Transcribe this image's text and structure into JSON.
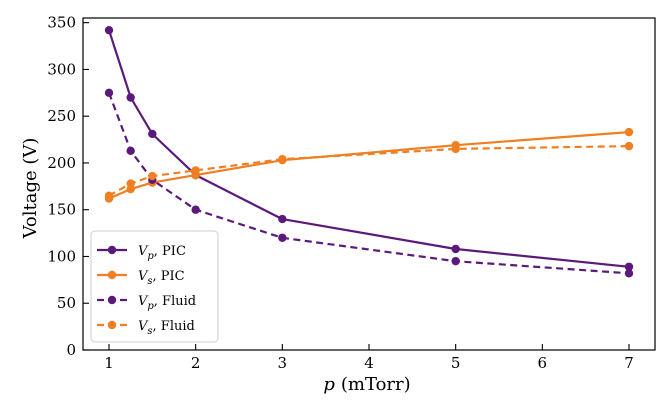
{
  "chart_data": {
    "type": "line",
    "title": "",
    "xlabel": {
      "var": "p",
      "unit": "(mTorr)"
    },
    "ylabel": "Voltage (V)",
    "xlim": [
      0.7,
      7.3
    ],
    "ylim": [
      0,
      355
    ],
    "xticks": [
      1,
      2,
      3,
      4,
      5,
      6,
      7
    ],
    "yticks": [
      0,
      50,
      100,
      150,
      200,
      250,
      300,
      350
    ],
    "grid": false,
    "legend_position": "lower-left",
    "series": [
      {
        "id": "vp-pic",
        "var": "V",
        "sub": "p",
        "method": "PIC",
        "color": "#5b1a7b",
        "dash": "solid",
        "x": [
          1,
          1.25,
          1.5,
          2,
          3,
          5,
          7
        ],
        "y": [
          342,
          270,
          231,
          187,
          140,
          108,
          89
        ]
      },
      {
        "id": "vs-pic",
        "var": "V",
        "sub": "s",
        "method": "PIC",
        "color": "#f07f21",
        "dash": "solid",
        "x": [
          1,
          1.25,
          1.5,
          2,
          3,
          5,
          7
        ],
        "y": [
          162,
          172,
          179,
          187,
          203,
          219,
          233
        ]
      },
      {
        "id": "vp-fluid",
        "var": "V",
        "sub": "p",
        "method": "Fluid",
        "color": "#5b1a7b",
        "dash": "dashed",
        "x": [
          1,
          1.25,
          1.5,
          2,
          3,
          5,
          7
        ],
        "y": [
          275,
          213,
          182,
          150,
          120,
          95,
          82
        ]
      },
      {
        "id": "vs-fluid",
        "var": "V",
        "sub": "s",
        "method": "Fluid",
        "color": "#f07f21",
        "dash": "dashed",
        "x": [
          1,
          1.25,
          1.5,
          2,
          3,
          5,
          7
        ],
        "y": [
          165,
          178,
          186,
          192,
          204,
          215,
          218
        ]
      }
    ]
  }
}
